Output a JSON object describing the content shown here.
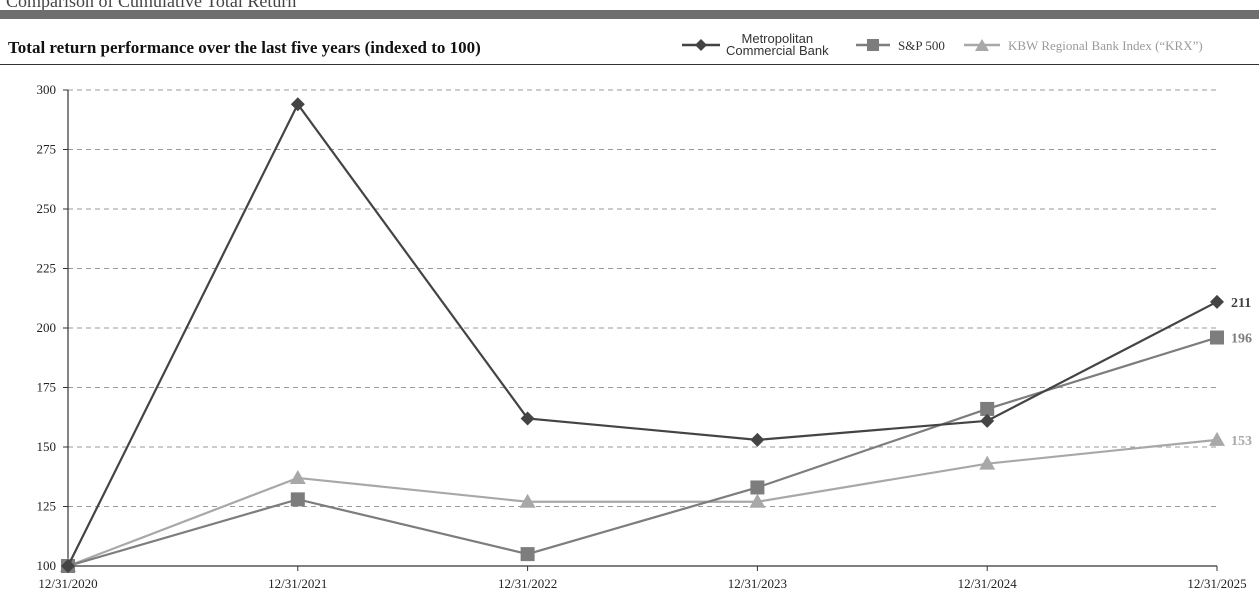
{
  "header": {
    "top_text": "Comparison of Cumulative Total Return"
  },
  "chart_data": {
    "type": "line",
    "title": "Total return performance over the last five years (indexed to 100)",
    "categories": [
      "12/31/2020",
      "12/31/2021",
      "12/31/2022",
      "12/31/2023",
      "12/31/2024",
      "12/31/2025"
    ],
    "ylim": [
      100,
      300
    ],
    "yticks": [
      100,
      125,
      150,
      175,
      200,
      225,
      250,
      275,
      300
    ],
    "grid": true,
    "legend_position": "top-right",
    "series": [
      {
        "name": "Metropolitan Commercial Bank",
        "name_lines": [
          "Metropolitan",
          "Commercial Bank"
        ],
        "marker": "diamond",
        "color": "#444444",
        "values": [
          100,
          294,
          162,
          153,
          161,
          211
        ],
        "end_label": "211"
      },
      {
        "name": "S&P 500",
        "marker": "square",
        "color": "#7d7d7d",
        "values": [
          100,
          128,
          105,
          133,
          166,
          196
        ],
        "end_label": "196"
      },
      {
        "name": "KBW Regional Bank Index (“KRX”)",
        "marker": "triangle",
        "color": "#a8a8a8",
        "values": [
          100,
          137,
          127,
          127,
          143,
          153
        ],
        "end_label": "153"
      }
    ]
  }
}
